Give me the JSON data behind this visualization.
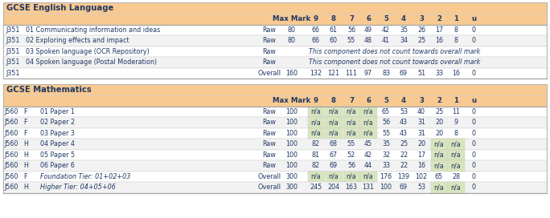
{
  "title1": "GCSE English Language",
  "title2": "GCSE Mathematics",
  "header_bg": "#F8C990",
  "na_bg": "#D8E4BC",
  "title_color": "#1F3864",
  "text_color": "#1F3864",
  "header_text_color": "#1F3864",
  "row_white": "#FFFFFF",
  "row_alt": "#F2F2F2",
  "english_span_text": "This component does not count towards overall mark",
  "grade_labels": [
    "9",
    "8",
    "7",
    "6",
    "5",
    "4",
    "3",
    "2",
    "1",
    "u"
  ],
  "eng_rows": [
    {
      "code": "J351",
      "desc": "01 Communicating information and ideas",
      "type": "Raw",
      "maxmark": "80",
      "grades": [
        "66",
        "61",
        "56",
        "49",
        "42",
        "35",
        "26",
        "17",
        "8",
        "0"
      ],
      "na_flags": [
        false,
        false,
        false,
        false,
        false,
        false,
        false,
        false,
        false,
        false
      ],
      "span": false,
      "italic": false
    },
    {
      "code": "J351",
      "desc": "02 Exploring effects and impact",
      "type": "Raw",
      "maxmark": "80",
      "grades": [
        "66",
        "60",
        "55",
        "48",
        "41",
        "34",
        "25",
        "16",
        "8",
        "0"
      ],
      "na_flags": [
        false,
        false,
        false,
        false,
        false,
        false,
        false,
        false,
        false,
        false
      ],
      "span": false,
      "italic": false
    },
    {
      "code": "J351",
      "desc": "03 Spoken language (OCR Repository)",
      "type": "Raw",
      "maxmark": "",
      "grades": [],
      "na_flags": [],
      "span": true,
      "italic": false
    },
    {
      "code": "J351",
      "desc": "04 Spoken language (Postal Moderation)",
      "type": "Raw",
      "maxmark": "",
      "grades": [],
      "na_flags": [],
      "span": true,
      "italic": false
    },
    {
      "code": "J351",
      "desc": "",
      "type": "Overall",
      "maxmark": "160",
      "grades": [
        "132",
        "121",
        "111",
        "97",
        "83",
        "69",
        "51",
        "33",
        "16",
        "0"
      ],
      "na_flags": [
        false,
        false,
        false,
        false,
        false,
        false,
        false,
        false,
        false,
        false
      ],
      "span": false,
      "italic": false
    }
  ],
  "math_rows": [
    {
      "code": "J560",
      "tier": "F",
      "desc": "01 Paper 1",
      "type": "Raw",
      "maxmark": "100",
      "grades": [
        "n/a",
        "n/a",
        "n/a",
        "n/a",
        "65",
        "53",
        "40",
        "25",
        "11",
        "0"
      ],
      "na_flags": [
        true,
        true,
        true,
        true,
        false,
        false,
        false,
        false,
        false,
        false
      ],
      "italic": false
    },
    {
      "code": "J560",
      "tier": "F",
      "desc": "02 Paper 2",
      "type": "Raw",
      "maxmark": "100",
      "grades": [
        "n/a",
        "n/a",
        "n/a",
        "n/a",
        "56",
        "43",
        "31",
        "20",
        "9",
        "0"
      ],
      "na_flags": [
        true,
        true,
        true,
        true,
        false,
        false,
        false,
        false,
        false,
        false
      ],
      "italic": false
    },
    {
      "code": "J560",
      "tier": "F",
      "desc": "03 Paper 3",
      "type": "Raw",
      "maxmark": "100",
      "grades": [
        "n/a",
        "n/a",
        "n/a",
        "n/a",
        "55",
        "43",
        "31",
        "20",
        "8",
        "0"
      ],
      "na_flags": [
        true,
        true,
        true,
        true,
        false,
        false,
        false,
        false,
        false,
        false
      ],
      "italic": false
    },
    {
      "code": "J560",
      "tier": "H",
      "desc": "04 Paper 4",
      "type": "Raw",
      "maxmark": "100",
      "grades": [
        "82",
        "68",
        "55",
        "45",
        "35",
        "25",
        "20",
        "n/a",
        "n/a",
        "0"
      ],
      "na_flags": [
        false,
        false,
        false,
        false,
        false,
        false,
        false,
        true,
        true,
        false
      ],
      "italic": false
    },
    {
      "code": "J560",
      "tier": "H",
      "desc": "05 Paper 5",
      "type": "Raw",
      "maxmark": "100",
      "grades": [
        "81",
        "67",
        "52",
        "42",
        "32",
        "22",
        "17",
        "n/a",
        "n/a",
        "0"
      ],
      "na_flags": [
        false,
        false,
        false,
        false,
        false,
        false,
        false,
        true,
        true,
        false
      ],
      "italic": false
    },
    {
      "code": "J560",
      "tier": "H",
      "desc": "06 Paper 6",
      "type": "Raw",
      "maxmark": "100",
      "grades": [
        "82",
        "69",
        "56",
        "44",
        "33",
        "22",
        "16",
        "n/a",
        "n/a",
        "0"
      ],
      "na_flags": [
        false,
        false,
        false,
        false,
        false,
        false,
        false,
        true,
        true,
        false
      ],
      "italic": false
    },
    {
      "code": "J560",
      "tier": "F",
      "desc": "Foundation Tier: 01+02+03",
      "type": "Overall",
      "maxmark": "300",
      "grades": [
        "n/a",
        "n/a",
        "n/a",
        "n/a",
        "176",
        "139",
        "102",
        "65",
        "28",
        "0"
      ],
      "na_flags": [
        true,
        true,
        true,
        true,
        false,
        false,
        false,
        false,
        false,
        false
      ],
      "italic": true
    },
    {
      "code": "J560",
      "tier": "H",
      "desc": "Higher Tier: 04+05+06",
      "type": "Overall",
      "maxmark": "300",
      "grades": [
        "245",
        "204",
        "163",
        "131",
        "100",
        "69",
        "53",
        "n/a",
        "n/a",
        "0"
      ],
      "na_flags": [
        false,
        false,
        false,
        false,
        false,
        false,
        false,
        true,
        true,
        false
      ],
      "italic": true
    }
  ],
  "fig_w": 6.84,
  "fig_h": 2.72,
  "dpi": 100
}
